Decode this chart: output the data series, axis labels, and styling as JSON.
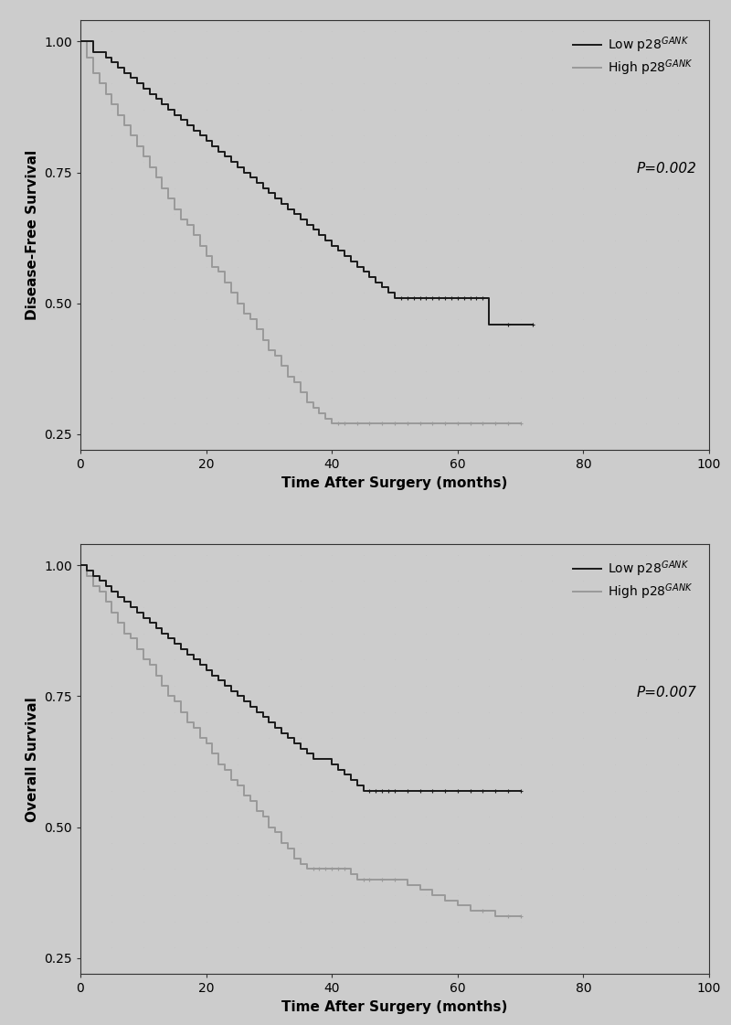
{
  "background_color": "#cccccc",
  "plot_bg_color": "#cccccc",
  "panel1": {
    "ylabel": "Disease-Free Survival",
    "xlabel": "Time After Surgery (months)",
    "p_value": "P=0.002",
    "ylim": [
      0.22,
      1.04
    ],
    "xlim": [
      0,
      100
    ],
    "yticks": [
      0.25,
      0.5,
      0.75,
      1.0
    ],
    "xticks": [
      0,
      20,
      40,
      60,
      80,
      100
    ],
    "low_x": [
      0,
      2,
      4,
      5,
      6,
      7,
      8,
      9,
      10,
      11,
      12,
      13,
      14,
      15,
      16,
      17,
      18,
      19,
      20,
      21,
      22,
      23,
      24,
      25,
      26,
      27,
      28,
      29,
      30,
      31,
      32,
      33,
      34,
      35,
      36,
      37,
      38,
      39,
      40,
      41,
      42,
      43,
      44,
      45,
      46,
      47,
      48,
      49,
      50,
      51,
      52,
      53,
      54,
      55,
      56,
      57,
      58,
      59,
      60,
      61,
      62,
      63,
      64,
      65,
      68,
      72
    ],
    "low_y": [
      1.0,
      0.98,
      0.97,
      0.96,
      0.95,
      0.94,
      0.93,
      0.92,
      0.91,
      0.9,
      0.89,
      0.88,
      0.87,
      0.86,
      0.85,
      0.84,
      0.83,
      0.82,
      0.81,
      0.8,
      0.79,
      0.78,
      0.77,
      0.76,
      0.75,
      0.74,
      0.73,
      0.72,
      0.71,
      0.7,
      0.69,
      0.68,
      0.67,
      0.66,
      0.65,
      0.64,
      0.63,
      0.62,
      0.61,
      0.6,
      0.59,
      0.58,
      0.57,
      0.56,
      0.55,
      0.54,
      0.53,
      0.52,
      0.51,
      0.51,
      0.51,
      0.51,
      0.51,
      0.51,
      0.51,
      0.51,
      0.51,
      0.51,
      0.51,
      0.51,
      0.51,
      0.51,
      0.51,
      0.46,
      0.46,
      0.46
    ],
    "high_x": [
      0,
      1,
      2,
      3,
      4,
      5,
      6,
      7,
      8,
      9,
      10,
      11,
      12,
      13,
      14,
      15,
      16,
      17,
      18,
      19,
      20,
      21,
      22,
      23,
      24,
      25,
      26,
      27,
      28,
      29,
      30,
      31,
      32,
      33,
      34,
      35,
      36,
      37,
      38,
      39,
      40,
      41,
      42,
      44,
      46,
      48,
      50,
      52,
      54,
      56,
      58,
      60,
      62,
      64,
      66,
      68,
      70
    ],
    "high_y": [
      1.0,
      0.97,
      0.94,
      0.92,
      0.9,
      0.88,
      0.86,
      0.84,
      0.82,
      0.8,
      0.78,
      0.76,
      0.74,
      0.72,
      0.7,
      0.68,
      0.66,
      0.65,
      0.63,
      0.61,
      0.59,
      0.57,
      0.56,
      0.54,
      0.52,
      0.5,
      0.48,
      0.47,
      0.45,
      0.43,
      0.41,
      0.4,
      0.38,
      0.36,
      0.35,
      0.33,
      0.31,
      0.3,
      0.29,
      0.28,
      0.27,
      0.27,
      0.27,
      0.27,
      0.27,
      0.27,
      0.27,
      0.27,
      0.27,
      0.27,
      0.27,
      0.27,
      0.27,
      0.27,
      0.27,
      0.27,
      0.27
    ]
  },
  "panel2": {
    "ylabel": "Overall Survival",
    "xlabel": "Time After Surgery (months)",
    "p_value": "P=0.007",
    "ylim": [
      0.22,
      1.04
    ],
    "xlim": [
      0,
      100
    ],
    "yticks": [
      0.25,
      0.5,
      0.75,
      1.0
    ],
    "xticks": [
      0,
      20,
      40,
      60,
      80,
      100
    ],
    "low_x": [
      0,
      1,
      2,
      3,
      4,
      5,
      6,
      7,
      8,
      9,
      10,
      11,
      12,
      13,
      14,
      15,
      16,
      17,
      18,
      19,
      20,
      21,
      22,
      23,
      24,
      25,
      26,
      27,
      28,
      29,
      30,
      31,
      32,
      33,
      34,
      35,
      36,
      37,
      38,
      39,
      40,
      41,
      42,
      43,
      44,
      45,
      46,
      47,
      48,
      49,
      50,
      52,
      54,
      56,
      58,
      60,
      62,
      64,
      66,
      68,
      70
    ],
    "low_y": [
      1.0,
      0.99,
      0.98,
      0.97,
      0.96,
      0.95,
      0.94,
      0.93,
      0.92,
      0.91,
      0.9,
      0.89,
      0.88,
      0.87,
      0.86,
      0.85,
      0.84,
      0.83,
      0.82,
      0.81,
      0.8,
      0.79,
      0.78,
      0.77,
      0.76,
      0.75,
      0.74,
      0.73,
      0.72,
      0.71,
      0.7,
      0.69,
      0.68,
      0.67,
      0.66,
      0.65,
      0.64,
      0.63,
      0.63,
      0.63,
      0.62,
      0.61,
      0.6,
      0.59,
      0.58,
      0.57,
      0.57,
      0.57,
      0.57,
      0.57,
      0.57,
      0.57,
      0.57,
      0.57,
      0.57,
      0.57,
      0.57,
      0.57,
      0.57,
      0.57,
      0.57
    ],
    "high_x": [
      0,
      1,
      2,
      3,
      4,
      5,
      6,
      7,
      8,
      9,
      10,
      11,
      12,
      13,
      14,
      15,
      16,
      17,
      18,
      19,
      20,
      21,
      22,
      23,
      24,
      25,
      26,
      27,
      28,
      29,
      30,
      31,
      32,
      33,
      34,
      35,
      36,
      37,
      38,
      39,
      40,
      41,
      42,
      43,
      44,
      45,
      46,
      48,
      50,
      52,
      54,
      56,
      58,
      60,
      62,
      64,
      66,
      68,
      70
    ],
    "high_y": [
      1.0,
      0.98,
      0.96,
      0.95,
      0.93,
      0.91,
      0.89,
      0.87,
      0.86,
      0.84,
      0.82,
      0.81,
      0.79,
      0.77,
      0.75,
      0.74,
      0.72,
      0.7,
      0.69,
      0.67,
      0.66,
      0.64,
      0.62,
      0.61,
      0.59,
      0.58,
      0.56,
      0.55,
      0.53,
      0.52,
      0.5,
      0.49,
      0.47,
      0.46,
      0.44,
      0.43,
      0.42,
      0.42,
      0.42,
      0.42,
      0.42,
      0.42,
      0.42,
      0.41,
      0.4,
      0.4,
      0.4,
      0.4,
      0.4,
      0.39,
      0.38,
      0.37,
      0.36,
      0.35,
      0.34,
      0.34,
      0.33,
      0.33,
      0.33
    ]
  },
  "low_color": "#1a1a1a",
  "high_color": "#999999",
  "low_linewidth": 1.4,
  "high_linewidth": 1.4,
  "tick_fontsize": 10,
  "label_fontsize": 11,
  "legend_fontsize": 10,
  "pvalue_fontsize": 11
}
